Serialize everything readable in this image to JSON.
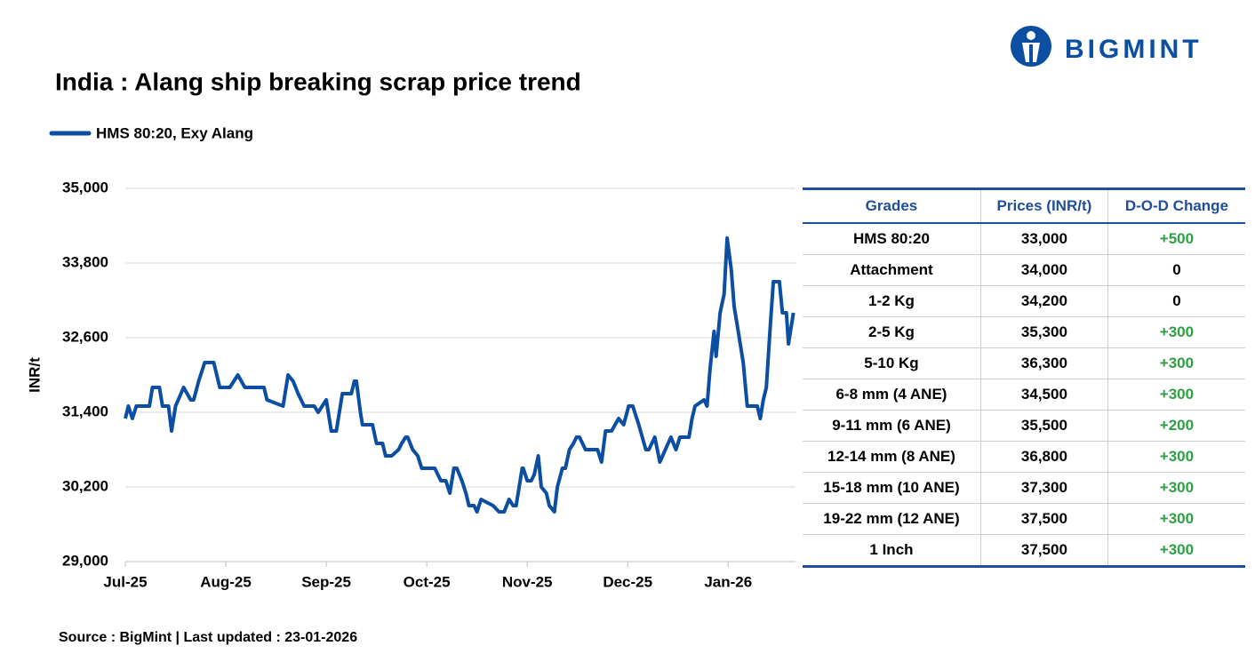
{
  "brand": "BIGMINT",
  "chart_data": {
    "type": "line",
    "title": "India : Alang ship breaking scrap price trend",
    "y_label": "INR/t",
    "x": [
      0.0,
      0.03,
      0.07,
      0.11,
      0.24,
      0.27,
      0.34,
      0.37,
      0.43,
      0.46,
      0.5,
      0.58,
      0.65,
      0.68,
      0.73,
      0.79,
      0.88,
      0.94,
      1.04,
      1.12,
      1.19,
      1.38,
      1.41,
      1.57,
      1.62,
      1.67,
      1.72,
      1.78,
      1.88,
      1.92,
      2.0,
      2.05,
      2.1,
      2.16,
      2.25,
      2.28,
      2.3,
      2.34,
      2.36,
      2.46,
      2.5,
      2.56,
      2.59,
      2.65,
      2.72,
      2.75,
      2.79,
      2.81,
      2.86,
      2.91,
      2.95,
      3.08,
      3.14,
      3.19,
      3.23,
      3.27,
      3.3,
      3.35,
      3.39,
      3.42,
      3.47,
      3.5,
      3.54,
      3.66,
      3.72,
      3.77,
      3.82,
      3.86,
      3.89,
      3.95,
      3.96,
      4.0,
      4.04,
      4.07,
      4.11,
      4.14,
      4.19,
      4.22,
      4.27,
      4.3,
      4.35,
      4.38,
      4.42,
      4.46,
      4.49,
      4.52,
      4.58,
      4.7,
      4.74,
      4.78,
      4.84,
      4.91,
      4.96,
      5.01,
      5.05,
      5.11,
      5.18,
      5.21,
      5.27,
      5.32,
      5.43,
      5.48,
      5.52,
      5.61,
      5.64,
      5.67,
      5.76,
      5.79,
      5.82,
      5.86,
      5.88,
      5.92,
      5.96,
      5.99,
      6.03,
      6.06,
      6.1,
      6.15,
      6.19,
      6.29,
      6.32,
      6.35,
      6.38,
      6.42,
      6.45,
      6.51,
      6.54,
      6.58,
      6.6,
      6.65
    ],
    "series": [
      {
        "name": "HMS 80:20, Exy Alang",
        "color": "#0b4ea2",
        "values": [
          31300,
          31500,
          31300,
          31500,
          31500,
          31800,
          31800,
          31500,
          31500,
          31100,
          31500,
          31800,
          31600,
          31600,
          31900,
          32200,
          32200,
          31800,
          31800,
          32000,
          31800,
          31800,
          31600,
          31500,
          32000,
          31900,
          31700,
          31500,
          31500,
          31400,
          31600,
          31100,
          31100,
          31700,
          31700,
          31900,
          31900,
          31400,
          31200,
          31200,
          30900,
          30900,
          30700,
          30700,
          30800,
          30900,
          31000,
          31000,
          30800,
          30700,
          30500,
          30500,
          30300,
          30300,
          30100,
          30500,
          30500,
          30300,
          30100,
          29900,
          29900,
          29800,
          30000,
          29900,
          29800,
          29800,
          30000,
          29900,
          29900,
          30500,
          30500,
          30300,
          30300,
          30400,
          30700,
          30200,
          30100,
          29900,
          29800,
          30200,
          30500,
          30500,
          30800,
          30900,
          31000,
          31000,
          30800,
          30800,
          30600,
          31100,
          31100,
          31300,
          31200,
          31500,
          31500,
          31200,
          30800,
          30800,
          31000,
          30600,
          31000,
          30800,
          31000,
          31000,
          31300,
          31500,
          31600,
          31500,
          32100,
          32700,
          32300,
          33000,
          33300,
          34200,
          33700,
          33100,
          32700,
          32200,
          31500,
          31500,
          31300,
          31600,
          31800,
          32800,
          33500,
          33500,
          33000,
          33000,
          32500,
          33000
        ]
      }
    ],
    "xlim": [
      0,
      6.67
    ],
    "xticks": [
      {
        "value": 0,
        "label": "Jul-25"
      },
      {
        "value": 1,
        "label": "Aug-25"
      },
      {
        "value": 2,
        "label": "Sep-25"
      },
      {
        "value": 3,
        "label": "Oct-25"
      },
      {
        "value": 4,
        "label": "Nov-25"
      },
      {
        "value": 5,
        "label": "Dec-25"
      },
      {
        "value": 6,
        "label": "Jan-26"
      }
    ],
    "ylim": [
      29000,
      35000
    ],
    "yticks": [
      {
        "value": 29000,
        "label": "29,000"
      },
      {
        "value": 30200,
        "label": "30,200"
      },
      {
        "value": 31400,
        "label": "31,400"
      },
      {
        "value": 32600,
        "label": "32,600"
      },
      {
        "value": 33800,
        "label": "33,800"
      },
      {
        "value": 35000,
        "label": "35,000"
      }
    ],
    "grid": true
  },
  "table": {
    "header": [
      "Grades",
      "Prices (INR/t)",
      "D-O-D Change"
    ],
    "rows": [
      [
        "HMS 80:20",
        "33,000",
        "+500"
      ],
      [
        "Attachment",
        "34,000",
        "0"
      ],
      [
        "1-2 Kg",
        "34,200",
        "0"
      ],
      [
        "2-5 Kg",
        "35,300",
        "+300"
      ],
      [
        "5-10 Kg",
        "36,300",
        "+300"
      ],
      [
        "6-8 mm (4 ANE)",
        "34,500",
        "+300"
      ],
      [
        "9-11 mm (6 ANE)",
        "35,500",
        "+200"
      ],
      [
        "12-14 mm (8 ANE)",
        "36,800",
        "+300"
      ],
      [
        "15-18 mm (10 ANE)",
        "37,300",
        "+300"
      ],
      [
        "19-22 mm (12 ANE)",
        "37,500",
        "+300"
      ],
      [
        "1 Inch",
        "37,500",
        "+300"
      ]
    ]
  },
  "source": "Source : BigMint | Last updated : 23-01-2026"
}
